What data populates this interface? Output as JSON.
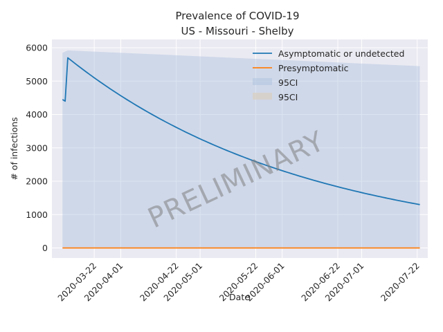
{
  "chart_data": {
    "type": "line",
    "title": "Prevalence of COVID-19",
    "subtitle": "US - Missouri - Shelby",
    "xlabel": "Date",
    "ylabel": "# of infections",
    "watermark": "PRELIMINARY",
    "x_range": [
      "2020-03-06",
      "2020-07-26"
    ],
    "ylim": [
      -300,
      6250
    ],
    "y_ticks": [
      0,
      1000,
      2000,
      3000,
      4000,
      5000,
      6000
    ],
    "x_ticks": [
      "2020-03-22",
      "2020-04-01",
      "2020-04-22",
      "2020-05-01",
      "2020-05-22",
      "2020-06-01",
      "2020-06-22",
      "2020-07-01",
      "2020-07-22"
    ],
    "grid": true,
    "legend_position": "top-right",
    "legend": [
      "Asymptomatic or undetected",
      "Presymptomatic",
      "95CI",
      "95CI"
    ],
    "series": [
      {
        "name": "Asymptomatic or undetected",
        "color": "#1f77b4",
        "x": [
          "2020-03-10",
          "2020-03-11",
          "2020-03-12",
          "2020-03-22",
          "2020-04-01",
          "2020-04-22",
          "2020-05-01",
          "2020-05-22",
          "2020-06-01",
          "2020-06-22",
          "2020-07-01",
          "2020-07-23"
        ],
        "y": [
          4450,
          4400,
          5700,
          4950,
          4320,
          3350,
          3000,
          2380,
          2150,
          1730,
          1590,
          1300
        ]
      },
      {
        "name": "Presymptomatic",
        "color": "#ff7f0e",
        "x": [
          "2020-03-10",
          "2020-07-23"
        ],
        "y": [
          0,
          0
        ]
      }
    ],
    "bands": [
      {
        "name": "95CI",
        "color": "#b0c4de",
        "x": [
          "2020-03-10",
          "2020-03-12",
          "2020-07-23"
        ],
        "upper": [
          5850,
          5920,
          5450
        ],
        "lower": [
          0,
          0,
          0
        ]
      },
      {
        "name": "95CI",
        "color": "#d8cfc4",
        "x": [
          "2020-03-10",
          "2020-07-23"
        ],
        "upper": [
          0,
          0
        ],
        "lower": [
          0,
          0
        ]
      }
    ]
  }
}
